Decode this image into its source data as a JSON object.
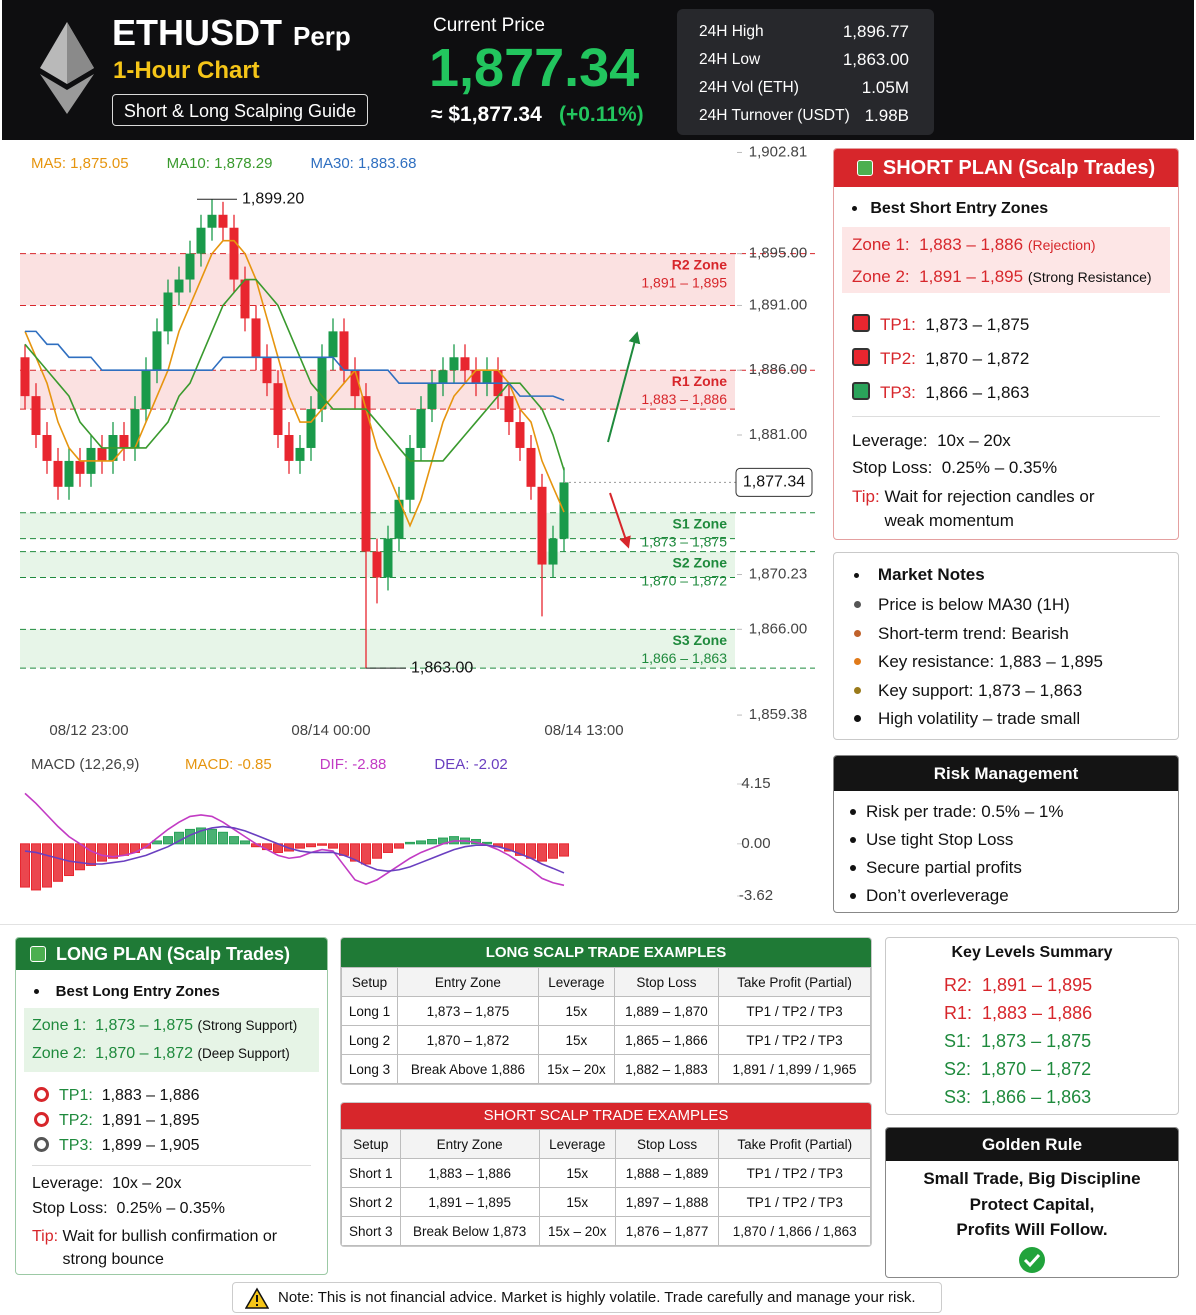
{
  "header": {
    "symbol": "ETHUSDT",
    "contract": "Perp",
    "timeframe": "1-Hour Chart",
    "guide": "Short & Long Scalping Guide",
    "price_caption": "Current Price",
    "price": "1,877.34",
    "approx": "≈ $1,877.34",
    "change": "(+0.11%)",
    "stats": [
      {
        "label": "24H High",
        "value": "1,896.77"
      },
      {
        "label": "24H Low",
        "value": "1,863.00"
      },
      {
        "label": "24H Vol (ETH)",
        "value": "1.05M"
      },
      {
        "label": "24H Turnover (USDT)",
        "value": "1.98B"
      }
    ]
  },
  "chart_data": [
    {
      "type": "candlestick",
      "up_color": "#1a9a4a",
      "down_color": "#e8262f",
      "x": [
        null,
        null,
        null,
        null,
        "08/12 23:00",
        null,
        null,
        null,
        null,
        null,
        null,
        null,
        null,
        null,
        null,
        null,
        null,
        null,
        null,
        null,
        null,
        null,
        null,
        null,
        null,
        null,
        "08/14 00:00",
        null,
        null,
        null,
        null,
        null,
        null,
        null,
        null,
        null,
        null,
        null,
        null,
        null,
        null,
        null,
        null,
        null,
        null,
        null,
        null,
        null,
        null,
        "08/14 13:00"
      ],
      "open": [
        1887,
        1884,
        1881,
        1879,
        1877,
        1879,
        1878,
        1880,
        1879,
        1881,
        1880,
        1883,
        1886,
        1889,
        1892,
        1893,
        1895,
        1897,
        1898,
        1897,
        1893,
        1890,
        1887,
        1885,
        1881,
        1879,
        1880,
        1883,
        1887,
        1889,
        1886,
        1884,
        1872,
        1870,
        1873,
        1876,
        1880,
        1883,
        1885,
        1886,
        1887,
        1886,
        1885,
        1886,
        1884,
        1882,
        1880,
        1877,
        1871,
        1873
      ],
      "high": [
        1888,
        1885,
        1882,
        1880,
        1880,
        1880,
        1881,
        1881,
        1882,
        1882,
        1884,
        1887,
        1890,
        1893,
        1894,
        1896,
        1898,
        1899.2,
        1899,
        1898,
        1894,
        1891,
        1888,
        1886,
        1882,
        1881,
        1884,
        1888,
        1890,
        1890,
        1887,
        1885,
        1873,
        1874,
        1877,
        1881,
        1884,
        1886,
        1887,
        1888,
        1888,
        1887,
        1887,
        1887,
        1885,
        1883,
        1881,
        1878,
        1874,
        1878.5
      ],
      "low": [
        1883,
        1880,
        1878,
        1876,
        1876,
        1877,
        1877,
        1878,
        1878,
        1879,
        1879,
        1882,
        1885,
        1888,
        1891,
        1892,
        1894,
        1896,
        1896,
        1892,
        1889,
        1886,
        1884,
        1880,
        1878,
        1878,
        1879,
        1882,
        1886,
        1885,
        1883,
        1863,
        1868,
        1869,
        1872,
        1875,
        1879,
        1882,
        1884,
        1885,
        1885,
        1884,
        1884,
        1883,
        1881,
        1879,
        1876,
        1867,
        1870,
        1872
      ],
      "close": [
        1884,
        1881,
        1879,
        1877,
        1879,
        1878,
        1880,
        1879,
        1881,
        1880,
        1883,
        1886,
        1889,
        1892,
        1893,
        1895,
        1897,
        1898,
        1897,
        1893,
        1890,
        1887,
        1885,
        1881,
        1879,
        1880,
        1883,
        1887,
        1889,
        1886,
        1884,
        1872,
        1870,
        1873,
        1876,
        1880,
        1883,
        1885,
        1886,
        1887,
        1886,
        1885,
        1886,
        1884,
        1882,
        1880,
        1877,
        1871,
        1873,
        1877.34
      ],
      "series": [
        {
          "name": "MA5: 1,875.05",
          "color": "#e6950f",
          "values": [
            1889,
            1887,
            1885,
            1882,
            1880,
            1879,
            1879,
            1879,
            1879,
            1880,
            1880,
            1882,
            1884,
            1886,
            1889,
            1891,
            1893,
            1895,
            1896,
            1896,
            1895,
            1893,
            1890,
            1887,
            1884,
            1882,
            1882,
            1883,
            1884,
            1885,
            1886,
            1883,
            1880,
            1878,
            1876,
            1874,
            1876,
            1879,
            1882,
            1884,
            1885,
            1886,
            1886,
            1886,
            1885,
            1883,
            1882,
            1879,
            1877,
            1875.05
          ]
        },
        {
          "name": "MA10: 1,878.29",
          "color": "#3a9a2e",
          "values": [
            1888,
            1887,
            1886,
            1885,
            1884,
            1882,
            1881,
            1880,
            1880,
            1880,
            1880,
            1880,
            1881,
            1882,
            1884,
            1885,
            1887,
            1889,
            1891,
            1892,
            1893,
            1893,
            1892,
            1891,
            1889,
            1887,
            1885,
            1884,
            1883,
            1883,
            1883,
            1883,
            1882,
            1881,
            1880,
            1879,
            1879,
            1879,
            1879,
            1880,
            1881,
            1882,
            1883,
            1884,
            1885,
            1885,
            1884,
            1883,
            1881,
            1878.29
          ]
        },
        {
          "name": "MA30: 1,883.68",
          "color": "#2f6fc0",
          "values": [
            1889,
            1889,
            1888,
            1888,
            1887,
            1887,
            1887,
            1886,
            1886,
            1886,
            1886,
            1886,
            1886,
            1886,
            1886,
            1886,
            1886,
            1886,
            1887,
            1887,
            1887,
            1887,
            1887,
            1887,
            1887,
            1887,
            1887,
            1887,
            1887,
            1886,
            1886,
            1886,
            1886,
            1886,
            1885,
            1885,
            1885,
            1885,
            1885,
            1885,
            1885,
            1885,
            1885,
            1885,
            1885,
            1884,
            1884,
            1884,
            1884,
            1883.68
          ]
        }
      ],
      "zones": [
        {
          "name": "R2 Zone",
          "label": "1,891 – 1,895",
          "from": 1891,
          "to": 1895,
          "color": "#f6b3b3",
          "text_color": "#d7262b"
        },
        {
          "name": "R1 Zone",
          "label": "1,883 – 1,886",
          "from": 1883,
          "to": 1886,
          "color": "#f6b3b3",
          "text_color": "#d7262b"
        },
        {
          "name": "S1 Zone",
          "label": "1,873 – 1,875",
          "from": 1873,
          "to": 1875,
          "color": "#c2e6c6",
          "text_color": "#1f8a3d"
        },
        {
          "name": "S2 Zone",
          "label": "1,870 – 1,872",
          "from": 1870,
          "to": 1872,
          "color": "#c2e6c6",
          "text_color": "#1f8a3d"
        },
        {
          "name": "S3 Zone",
          "label": "1,866 – 1,863",
          "from": 1866,
          "to": 1863,
          "color": "#c2e6c6",
          "text_color": "#1f8a3d"
        }
      ],
      "annotations": [
        {
          "value": 1899.2,
          "label": "1,899.20",
          "point": "high"
        },
        {
          "value": 1863,
          "label": "1,863.00",
          "point": "low"
        }
      ],
      "last_price": {
        "value": 1877.34,
        "label": "1,877.34"
      },
      "ylim": [
        1859,
        1903
      ],
      "yticks": [
        {
          "value": 1902.81,
          "label": "1,902.81"
        },
        {
          "value": 1895,
          "label": "1,895.00"
        },
        {
          "value": 1891,
          "label": "1,891.00"
        },
        {
          "value": 1886,
          "label": "1,886.00"
        },
        {
          "value": 1881,
          "label": "1,881.00"
        },
        {
          "value": 1870.23,
          "label": "1,870.23"
        },
        {
          "value": 1866,
          "label": "1,866.00"
        },
        {
          "value": 1859.38,
          "label": "1,859.38"
        }
      ]
    },
    {
      "type": "macd",
      "title": "MACD (12,26,9)",
      "series": [
        {
          "name": "MACD: -0.85",
          "type": "bar",
          "color": "#e6950f",
          "up_color": "#2aa35a",
          "down_color": "#e8262f",
          "values": [
            -3.0,
            -3.2,
            -3.0,
            -2.6,
            -2.2,
            -1.8,
            -1.5,
            -1.2,
            -1.0,
            -0.8,
            -0.6,
            -0.3,
            0.2,
            0.5,
            0.8,
            1.0,
            1.1,
            1.0,
            0.8,
            0.5,
            0.2,
            -0.2,
            -0.4,
            -0.6,
            -0.5,
            -0.3,
            -0.2,
            -0.1,
            -0.3,
            -0.8,
            -1.2,
            -1.4,
            -1.0,
            -0.6,
            -0.3,
            0.1,
            0.2,
            0.3,
            0.4,
            0.5,
            0.4,
            0.3,
            0.1,
            -0.2,
            -0.5,
            -0.8,
            -1.0,
            -1.2,
            -1.0,
            -0.85
          ]
        },
        {
          "name": "DIF: -2.88",
          "color": "#c23bc4",
          "values": [
            3.5,
            2.8,
            2.0,
            1.2,
            0.5,
            0,
            -0.5,
            -0.8,
            -0.9,
            -0.8,
            -0.6,
            -0.2,
            0.4,
            1.0,
            1.5,
            1.9,
            2.0,
            1.9,
            1.5,
            1.0,
            0.5,
            0,
            -0.4,
            -0.8,
            -1.0,
            -0.9,
            -0.6,
            -0.4,
            -0.5,
            -1.5,
            -2.5,
            -2.8,
            -2.5,
            -2.0,
            -1.5,
            -1.0,
            -0.6,
            -0.3,
            0,
            0.2,
            0.2,
            0.1,
            -0.1,
            -0.4,
            -0.8,
            -1.3,
            -1.8,
            -2.4,
            -2.7,
            -2.88
          ]
        },
        {
          "name": "DEA: -2.02",
          "color": "#6a3fc0",
          "values": [
            -0.5,
            -0.6,
            -0.8,
            -1.0,
            -1.2,
            -1.3,
            -1.4,
            -1.4,
            -1.3,
            -1.2,
            -1.0,
            -0.8,
            -0.5,
            -0.2,
            0.2,
            0.6,
            0.9,
            1.1,
            1.2,
            1.1,
            0.9,
            0.6,
            0.3,
            0,
            -0.3,
            -0.5,
            -0.6,
            -0.6,
            -0.6,
            -0.8,
            -1.1,
            -1.5,
            -1.8,
            -1.9,
            -1.8,
            -1.6,
            -1.3,
            -1.0,
            -0.7,
            -0.4,
            -0.2,
            -0.1,
            -0.1,
            -0.2,
            -0.4,
            -0.7,
            -1.0,
            -1.4,
            -1.7,
            -2.02
          ]
        }
      ],
      "ylim": [
        -3.62,
        4.15
      ],
      "yticks": [
        4.15,
        {
          "value": 0,
          "label": "0.00"
        },
        -3.62
      ]
    }
  ],
  "short_plan": {
    "title": "SHORT PLAN (Scalp Trades)",
    "heading": "Best Short Entry Zones",
    "zones": [
      {
        "label": "Zone 1:",
        "range": "1,883 – 1,886",
        "note": "(Rejection)"
      },
      {
        "label": "Zone 2:",
        "range": "1,891 – 1,895",
        "note": "(Strong Resistance)"
      }
    ],
    "targets": [
      {
        "label": "TP1:",
        "range": "1,873 – 1,875"
      },
      {
        "label": "TP2:",
        "range": "1,870 – 1,872"
      },
      {
        "label": "TP3:",
        "range": "1,866 – 1,863"
      }
    ],
    "leverage": {
      "label": "Leverage:",
      "value": "10x – 20x"
    },
    "stop_loss": {
      "label": "Stop Loss:",
      "value": "0.25% – 0.35%"
    },
    "tip": {
      "label": "Tip:",
      "text": "Wait for rejection candles or weak momentum"
    }
  },
  "market_notes": {
    "title": "Market Notes",
    "items": [
      "Price is below MA30 (1H)",
      "Short-term trend: Bearish",
      "Key resistance: 1,883 – 1,895",
      "Key support: 1,873 – 1,863",
      "High volatility – trade small"
    ]
  },
  "risk": {
    "title": "Risk Management",
    "items": [
      "Risk per trade: 0.5% – 1%",
      "Use tight Stop Loss",
      "Secure partial profits",
      "Don’t overleverage"
    ]
  },
  "long_plan": {
    "title": "LONG PLAN (Scalp Trades)",
    "heading": "Best Long Entry Zones",
    "zones": [
      {
        "label": "Zone 1:",
        "range": "1,873 – 1,875",
        "note": "(Strong Support)"
      },
      {
        "label": "Zone 2:",
        "range": "1,870 – 1,872",
        "note": "(Deep Support)"
      }
    ],
    "targets": [
      {
        "label": "TP1:",
        "range": "1,883 – 1,886"
      },
      {
        "label": "TP2:",
        "range": "1,891 – 1,895"
      },
      {
        "label": "TP3:",
        "range": "1,899 – 1,905"
      }
    ],
    "leverage": {
      "label": "Leverage:",
      "value": "10x – 20x"
    },
    "stop_loss": {
      "label": "Stop Loss:",
      "value": "0.25% – 0.35%"
    },
    "tip": {
      "label": "Tip:",
      "text": "Wait for bullish confirmation or strong bounce"
    }
  },
  "long_table": {
    "title": "LONG SCALP TRADE EXAMPLES",
    "columns": [
      "Setup",
      "Entry Zone",
      "Leverage",
      "Stop Loss",
      "Take Profit (Partial)"
    ],
    "rows": [
      [
        "Long 1",
        "1,873 – 1,875",
        "15x",
        "1,889 – 1,870",
        "TP1 / TP2 / TP3"
      ],
      [
        "Long 2",
        "1,870 – 1,872",
        "15x",
        "1,865 – 1,866",
        "TP1 / TP2 / TP3"
      ],
      [
        "Long 3",
        "Break Above 1,886",
        "15x – 20x",
        "1,882 – 1,883",
        "1,891 / 1,899 / 1,965"
      ]
    ]
  },
  "short_table": {
    "title": "SHORT SCALP TRADE EXAMPLES",
    "columns": [
      "Setup",
      "Entry Zone",
      "Leverage",
      "Stop Loss",
      "Take Profit (Partial)"
    ],
    "rows": [
      [
        "Short 1",
        "1,883 – 1,886",
        "15x",
        "1,888 – 1,889",
        "TP1 / TP2 / TP3"
      ],
      [
        "Short 2",
        "1,891 – 1,895",
        "15x",
        "1,897 – 1,888",
        "TP1 / TP2 / TP3"
      ],
      [
        "Short 3",
        "Break Below 1,873",
        "15x – 20x",
        "1,876 – 1,877",
        "1,870 / 1,866 / 1,863"
      ]
    ]
  },
  "key_levels": {
    "title": "Key Levels Summary",
    "items": [
      {
        "label": "R2:",
        "range": "1,891 – 1,895",
        "color": "#d7262b"
      },
      {
        "label": "R1:",
        "range": "1,883 – 1,886",
        "color": "#d7262b"
      },
      {
        "label": "S1:",
        "range": "1,873 – 1,875",
        "color": "#1f8a3d"
      },
      {
        "label": "S2:",
        "range": "1,870 – 1,872",
        "color": "#1f8a3d"
      },
      {
        "label": "S3:",
        "range": "1,866 – 1,863",
        "color": "#1f8a3d"
      }
    ]
  },
  "golden_rule": {
    "title": "Golden Rule",
    "lines": [
      "Small Trade, Big Discipline",
      "Protect Capital,",
      "Profits Will Follow."
    ]
  },
  "note": "Note: This is not financial advice. Market is highly volatile. Trade carefully and manage your risk."
}
